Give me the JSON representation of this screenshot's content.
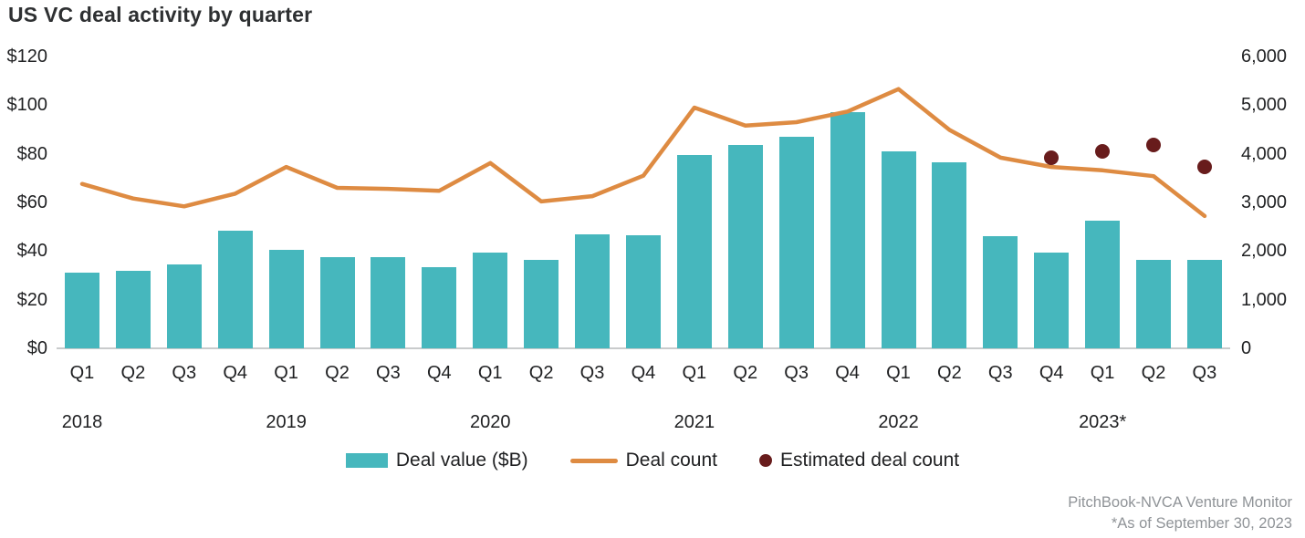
{
  "title": "US VC deal activity by quarter",
  "colors": {
    "bar": "#46b7bd",
    "line": "#de8b42",
    "dot": "#681c1c",
    "baseline": "#c9cbcc",
    "axis_text": "#1f2022",
    "title_text": "#2e3032",
    "source_text": "#8f9397"
  },
  "left_axis": {
    "ticks": [
      "$120",
      "$100",
      "$80",
      "$60",
      "$40",
      "$20",
      "$0"
    ]
  },
  "right_axis": {
    "ticks": [
      "6,000",
      "5,000",
      "4,000",
      "3,000",
      "2,000",
      "1,000",
      "0"
    ]
  },
  "legend": {
    "items": [
      {
        "swatch": "bar-swatch-icon",
        "label": "Deal value ($B)"
      },
      {
        "swatch": "line-swatch-icon",
        "label": "Deal count"
      },
      {
        "swatch": "dot-swatch-icon",
        "label": "Estimated deal count"
      }
    ]
  },
  "source": {
    "line1": "PitchBook-NVCA Venture Monitor",
    "line2": "*As of September 30, 2023"
  },
  "chart_data": {
    "type": "combo",
    "subtypes": [
      "bar",
      "line",
      "scatter"
    ],
    "title": "US VC deal activity by quarter",
    "quarters": [
      "Q1",
      "Q2",
      "Q3",
      "Q4",
      "Q1",
      "Q2",
      "Q3",
      "Q4",
      "Q1",
      "Q2",
      "Q3",
      "Q4",
      "Q1",
      "Q2",
      "Q3",
      "Q4",
      "Q1",
      "Q2",
      "Q3",
      "Q4",
      "Q1",
      "Q2",
      "Q3"
    ],
    "years": [
      {
        "label": "2018",
        "quarter_index": 0
      },
      {
        "label": "2019",
        "quarter_index": 4
      },
      {
        "label": "2020",
        "quarter_index": 8
      },
      {
        "label": "2021",
        "quarter_index": 12
      },
      {
        "label": "2022",
        "quarter_index": 16
      },
      {
        "label": "2023*",
        "quarter_index": 20
      }
    ],
    "left_ylabel": "Deal value ($B)",
    "right_ylabel": "Deal count",
    "left_ylim": [
      0,
      120
    ],
    "right_ylim": [
      0,
      6000
    ],
    "grid": false,
    "legend_position": "bottom",
    "series": [
      {
        "name": "Deal value ($B)",
        "type": "bar",
        "axis": "left",
        "values": [
          31,
          32,
          34.5,
          48.5,
          40.5,
          37.5,
          37.5,
          33.5,
          39.5,
          36.5,
          47,
          46.5,
          79.5,
          83.5,
          87,
          97,
          81,
          76.5,
          46,
          39.5,
          52.5,
          36.5,
          36.5
        ]
      },
      {
        "name": "Deal count",
        "type": "line",
        "axis": "right",
        "values": [
          3380,
          3080,
          2920,
          3180,
          3730,
          3300,
          3280,
          3240,
          3810,
          3020,
          3130,
          3550,
          4950,
          4580,
          4650,
          4870,
          5330,
          4490,
          3920,
          3730,
          3660,
          3540,
          2720
        ]
      },
      {
        "name": "Estimated deal count",
        "type": "scatter",
        "axis": "right",
        "values": [
          null,
          null,
          null,
          null,
          null,
          null,
          null,
          null,
          null,
          null,
          null,
          null,
          null,
          null,
          null,
          null,
          null,
          null,
          null,
          3920,
          4050,
          4180,
          3730
        ]
      }
    ]
  }
}
